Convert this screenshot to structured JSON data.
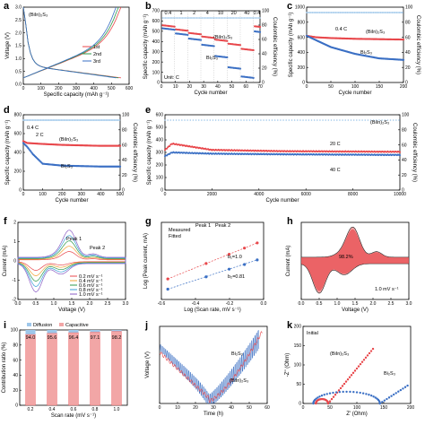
{
  "colors": {
    "red": "#e8474b",
    "blue": "#3a6fc4",
    "green": "#2e9a4c",
    "lightblue": "#9ec7ea",
    "lightred": "#f2a6a6"
  },
  "chart_data": [
    {
      "panel": "a",
      "type": "line",
      "xlabel": "Specific capacity (mAh g⁻¹)",
      "ylabel": "Voltage (V)",
      "xticks": [
        "0",
        "100",
        "200",
        "300",
        "400",
        "500",
        "600"
      ],
      "yticks": [
        "0.0",
        "0.5",
        "1.0",
        "1.5",
        "2.0",
        "2.5",
        "3.0"
      ],
      "xlim": [
        0,
        650
      ],
      "ylim": [
        0,
        3
      ],
      "annotation": "(BiIn)₂S₃",
      "series": [
        {
          "name": "1st",
          "color": "#e8474b"
        },
        {
          "name": "2nd",
          "color": "#2e9a4c"
        },
        {
          "name": "3rd",
          "color": "#3a6fc4"
        }
      ]
    },
    {
      "panel": "b",
      "type": "scatter",
      "xlabel": "Cycle number",
      "ylabel": "Specific capacity (mAh g⁻¹)",
      "y2label": "Coulombic efficiency (%)",
      "xticks": [
        "0",
        "10",
        "20",
        "30",
        "40",
        "50",
        "60",
        "70"
      ],
      "yticks": [
        "0",
        "100",
        "200",
        "300",
        "400",
        "500",
        "600",
        "700"
      ],
      "y2ticks": [
        "0",
        "20",
        "40",
        "60",
        "80",
        "100"
      ],
      "xlim": [
        0,
        75
      ],
      "ylim": [
        0,
        700
      ],
      "rates": [
        "0.4",
        "1",
        "2",
        "4",
        "10",
        "20",
        "40",
        "0.4"
      ],
      "unit_label": "Unit: C",
      "series": [
        {
          "name": "(BiIn)₂S₃",
          "segments": [
            [
              0,
              10,
              560
            ],
            [
              10,
              20,
              520
            ],
            [
              20,
              30,
              485
            ],
            [
              30,
              40,
              450
            ],
            [
              40,
              50,
              420
            ],
            [
              50,
              60,
              380
            ],
            [
              60,
              70,
              330
            ],
            [
              70,
              75,
              550
            ]
          ]
        },
        {
          "name": "Bi₂S₃",
          "segments": [
            [
              0,
              10,
              530
            ],
            [
              10,
              20,
              480
            ],
            [
              20,
              30,
              430
            ],
            [
              30,
              40,
              370
            ],
            [
              40,
              50,
              260
            ],
            [
              50,
              60,
              150
            ],
            [
              60,
              70,
              60
            ],
            [
              70,
              75,
              500
            ]
          ]
        }
      ]
    },
    {
      "panel": "c",
      "type": "scatter",
      "xlabel": "Cycle number",
      "ylabel": "Specific capacity (mAh g⁻¹)",
      "y2label": "Coulombic efficiency (%)",
      "xticks": [
        "0",
        "50",
        "100",
        "150",
        "200"
      ],
      "yticks": [
        "0",
        "200",
        "400",
        "600",
        "800",
        "1000"
      ],
      "y2ticks": [
        "0",
        "20",
        "40",
        "60",
        "80",
        "100"
      ],
      "xlim": [
        0,
        200
      ],
      "ylim": [
        0,
        1000
      ],
      "rate": "0.4 C",
      "series": [
        {
          "name": "(BiIn)₂S₃",
          "points": [
            [
              0,
              620
            ],
            [
              20,
              600
            ],
            [
              50,
              590
            ],
            [
              100,
              580
            ],
            [
              150,
              575
            ],
            [
              200,
              570
            ]
          ]
        },
        {
          "name": "Bi₂S₃",
          "points": [
            [
              0,
              620
            ],
            [
              20,
              560
            ],
            [
              50,
              470
            ],
            [
              100,
              380
            ],
            [
              150,
              320
            ],
            [
              200,
              300
            ]
          ]
        }
      ]
    },
    {
      "panel": "d",
      "type": "scatter",
      "xlabel": "Cycle number",
      "ylabel": "Specific capacity (mAh g⁻¹)",
      "y2label": "Coulombic efficiency (%)",
      "xticks": [
        "0",
        "100",
        "200",
        "300",
        "400",
        "500"
      ],
      "yticks": [
        "0",
        "200",
        "400",
        "600",
        "800"
      ],
      "y2ticks": [
        "0",
        "20",
        "40",
        "60",
        "80",
        "100"
      ],
      "xlim": [
        0,
        500
      ],
      "ylim": [
        0,
        800
      ],
      "rates": [
        "0.4 C",
        "2 C"
      ],
      "series": [
        {
          "name": "(BiIn)₂S₃",
          "points": [
            [
              0,
              520
            ],
            [
              20,
              500
            ],
            [
              100,
              490
            ],
            [
              200,
              480
            ],
            [
              300,
              475
            ],
            [
              400,
              470
            ],
            [
              500,
              470
            ]
          ]
        },
        {
          "name": "Bi₂S₃",
          "points": [
            [
              0,
              500
            ],
            [
              20,
              460
            ],
            [
              50,
              380
            ],
            [
              100,
              280
            ],
            [
              200,
              260
            ],
            [
              300,
              255
            ],
            [
              400,
              250
            ],
            [
              500,
              250
            ]
          ]
        }
      ]
    },
    {
      "panel": "e",
      "type": "scatter",
      "xlabel": "Cycle number",
      "ylabel": "Specific capacity (mAh g⁻¹)",
      "y2label": "Coulombic efficiency (%)",
      "xticks": [
        "0",
        "2000",
        "4000",
        "6000",
        "8000",
        "10000"
      ],
      "yticks": [
        "0",
        "100",
        "200",
        "300",
        "400",
        "500",
        "600"
      ],
      "y2ticks": [
        "0",
        "20",
        "40",
        "60",
        "80",
        "100"
      ],
      "xlim": [
        0,
        10000
      ],
      "ylim": [
        0,
        600
      ],
      "annotation": "(BiIn)₂S₃",
      "series": [
        {
          "name": "20 C",
          "points": [
            [
              0,
              320
            ],
            [
              300,
              370
            ],
            [
              2000,
              320
            ],
            [
              5000,
              310
            ],
            [
              10000,
              305
            ]
          ]
        },
        {
          "name": "40 C",
          "points": [
            [
              0,
              270
            ],
            [
              300,
              300
            ],
            [
              2000,
              290
            ],
            [
              5000,
              285
            ],
            [
              10000,
              280
            ]
          ]
        }
      ]
    },
    {
      "panel": "f",
      "type": "line",
      "xlabel": "Voltage (V)",
      "ylabel": "Current (mA)",
      "xticks": [
        "0.0",
        "0.5",
        "1.0",
        "1.5",
        "2.0",
        "2.5",
        "3.0"
      ],
      "yticks": [
        "-2",
        "-1",
        "0",
        "1",
        "2"
      ],
      "xlim": [
        0,
        3
      ],
      "ylim": [
        -2.5,
        2.5
      ],
      "peaks": [
        "Peak 1",
        "Peak 2"
      ],
      "series": [
        {
          "name": "0.2 mV s⁻¹"
        },
        {
          "name": "0.4 mV s⁻¹"
        },
        {
          "name": "0.6 mV s⁻¹"
        },
        {
          "name": "0.8 mV s⁻¹"
        },
        {
          "name": "1.0 mV s⁻¹"
        }
      ]
    },
    {
      "panel": "g",
      "type": "scatter",
      "xlabel": "Log (Scan rate, mV s⁻¹)",
      "ylabel": "Log (Peak current, mA)",
      "xticks": [
        "-0.6",
        "-0.4",
        "-0.2",
        "0.0"
      ],
      "yticks": [],
      "xlim": [
        -0.75,
        0.05
      ],
      "ylim": [
        -1,
        0.5
      ],
      "legend": [
        "Measured",
        "Fitted"
      ],
      "peak_labels": [
        "Peak 1",
        "Peak 2"
      ],
      "fits": [
        "b₁=1.0",
        "b₂=0.81"
      ],
      "series": [
        {
          "name": "Peak 1",
          "x": [
            -0.7,
            -0.4,
            -0.22,
            -0.1,
            0.0
          ],
          "y": [
            -0.6,
            -0.3,
            -0.12,
            0.0,
            0.1
          ]
        },
        {
          "name": "Peak 2",
          "x": [
            -0.7,
            -0.4,
            -0.22,
            -0.1,
            0.0
          ],
          "y": [
            -0.8,
            -0.56,
            -0.41,
            -0.32,
            -0.23
          ]
        }
      ]
    },
    {
      "panel": "h",
      "type": "area",
      "xlabel": "Voltage (V)",
      "ylabel": "Current (mA)",
      "xticks": [
        "0.0",
        "0.5",
        "1.0",
        "1.5",
        "2.0",
        "2.5",
        "3.0"
      ],
      "yticks": [],
      "xlim": [
        0,
        3
      ],
      "annotation": "98.2%",
      "rate": "1.0 mV s⁻¹"
    },
    {
      "panel": "i",
      "type": "bar",
      "xlabel": "Scan rate (mV s⁻¹)",
      "ylabel": "Contribution ratio (%)",
      "categories": [
        "0.2",
        "0.4",
        "0.6",
        "0.8",
        "1.0"
      ],
      "values": [
        94.0,
        95.6,
        96.4,
        97.1,
        98.2
      ],
      "yticks": [
        "0",
        "20",
        "40",
        "60",
        "80",
        "100"
      ],
      "ylim": [
        0,
        100
      ],
      "legend": [
        "Diffusion",
        "Capacitive"
      ]
    },
    {
      "panel": "j",
      "type": "line",
      "xlabel": "Time (h)",
      "ylabel": "Voltage (V)",
      "xticks": [
        "0",
        "10",
        "20",
        "30",
        "40",
        "50",
        "60"
      ],
      "yticks": [],
      "xlim": [
        0,
        65
      ],
      "series": [
        {
          "name": "Bi₂S₃"
        },
        {
          "name": "(BiIn)₂S₃"
        }
      ]
    },
    {
      "panel": "k",
      "type": "scatter",
      "xlabel": "Z' (Ohm)",
      "ylabel": "-Z'' (Ohm)",
      "xticks": [
        "0",
        "50",
        "100",
        "150",
        "200"
      ],
      "yticks": [
        "0",
        "50",
        "100",
        "150",
        "200"
      ],
      "xlim": [
        0,
        210
      ],
      "ylim": [
        0,
        210
      ],
      "annotation": "Initial",
      "series": [
        {
          "name": "(BiIn)₂S₃"
        },
        {
          "name": "Bi₂S₃"
        }
      ]
    }
  ]
}
